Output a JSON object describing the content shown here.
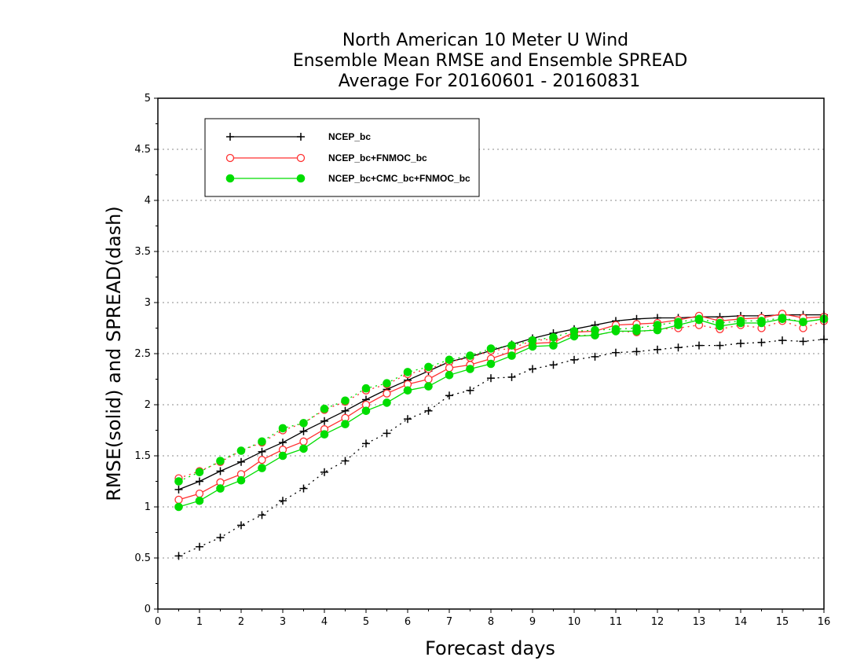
{
  "chart_data": {
    "type": "line",
    "title": [
      "North American 10 Meter U Wind",
      "Ensemble Mean RMSE and Ensemble SPREAD",
      "Average For 20160601 - 20160831"
    ],
    "xlabel": "Forecast days",
    "ylabel": "RMSE(solid) and SPREAD(dash)",
    "xlim": [
      0,
      16
    ],
    "ylim": [
      0,
      5
    ],
    "xticks": [
      "0",
      "1",
      "2",
      "3",
      "4",
      "5",
      "6",
      "7",
      "8",
      "9",
      "10",
      "11",
      "12",
      "13",
      "14",
      "15",
      "16"
    ],
    "yticks": [
      "0",
      "0.5",
      "1",
      "1.5",
      "2",
      "2.5",
      "3",
      "3.5",
      "4",
      "4.5",
      "5"
    ],
    "grid": "horizontal dotted",
    "legend_position": "top-left",
    "x": [
      0.5,
      1,
      1.5,
      2,
      2.5,
      3,
      3.5,
      4,
      4.5,
      5,
      5.5,
      6,
      6.5,
      7,
      7.5,
      8,
      8.5,
      9,
      9.5,
      10,
      10.5,
      11,
      11.5,
      12,
      12.5,
      13,
      13.5,
      14,
      14.5,
      15,
      15.5,
      16
    ],
    "series": [
      {
        "name": "NCEP_bc",
        "color": "#000000",
        "marker": "plus",
        "rmse": [
          1.17,
          1.25,
          1.35,
          1.44,
          1.54,
          1.63,
          1.74,
          1.84,
          1.94,
          2.05,
          2.15,
          2.24,
          2.33,
          2.42,
          2.47,
          2.53,
          2.59,
          2.65,
          2.7,
          2.74,
          2.78,
          2.82,
          2.84,
          2.85,
          2.85,
          2.86,
          2.86,
          2.87,
          2.87,
          2.88,
          2.88,
          2.88
        ],
        "spread": [
          0.52,
          0.61,
          0.7,
          0.82,
          0.92,
          1.06,
          1.18,
          1.34,
          1.45,
          1.62,
          1.72,
          1.86,
          1.94,
          2.09,
          2.14,
          2.26,
          2.27,
          2.35,
          2.39,
          2.44,
          2.47,
          2.51,
          2.52,
          2.54,
          2.56,
          2.58,
          2.58,
          2.6,
          2.61,
          2.63,
          2.62,
          2.64
        ]
      },
      {
        "name": "NCEP_bc+FNMOC_bc",
        "color": "#ff3030",
        "marker": "open-circle",
        "rmse": [
          1.07,
          1.13,
          1.24,
          1.32,
          1.46,
          1.56,
          1.64,
          1.76,
          1.87,
          2.0,
          2.11,
          2.2,
          2.25,
          2.36,
          2.39,
          2.45,
          2.52,
          2.6,
          2.61,
          2.71,
          2.72,
          2.78,
          2.79,
          2.8,
          2.83,
          2.87,
          2.82,
          2.84,
          2.85,
          2.89,
          2.85,
          2.86
        ],
        "spread": [
          1.28,
          1.35,
          1.44,
          1.55,
          1.63,
          1.75,
          1.82,
          1.95,
          2.03,
          2.14,
          2.2,
          2.3,
          2.35,
          2.42,
          2.46,
          2.53,
          2.55,
          2.63,
          2.64,
          2.68,
          2.68,
          2.72,
          2.71,
          2.74,
          2.75,
          2.78,
          2.74,
          2.78,
          2.75,
          2.82,
          2.75,
          2.82
        ]
      },
      {
        "name": "NCEP_bc+CMC_bc+FNMOC_bc",
        "color": "#00dd00",
        "marker": "filled-circle",
        "rmse": [
          1.0,
          1.06,
          1.18,
          1.26,
          1.38,
          1.5,
          1.57,
          1.71,
          1.81,
          1.94,
          2.02,
          2.14,
          2.18,
          2.29,
          2.35,
          2.4,
          2.48,
          2.57,
          2.58,
          2.67,
          2.68,
          2.72,
          2.72,
          2.73,
          2.78,
          2.83,
          2.77,
          2.8,
          2.8,
          2.84,
          2.81,
          2.84
        ],
        "spread": [
          1.25,
          1.34,
          1.45,
          1.55,
          1.64,
          1.77,
          1.82,
          1.96,
          2.04,
          2.16,
          2.21,
          2.32,
          2.37,
          2.44,
          2.48,
          2.55,
          2.58,
          2.63,
          2.66,
          2.72,
          2.73,
          2.74,
          2.75,
          2.78,
          2.81,
          2.84,
          2.8,
          2.82,
          2.82,
          2.85,
          2.81,
          2.84
        ]
      }
    ]
  }
}
